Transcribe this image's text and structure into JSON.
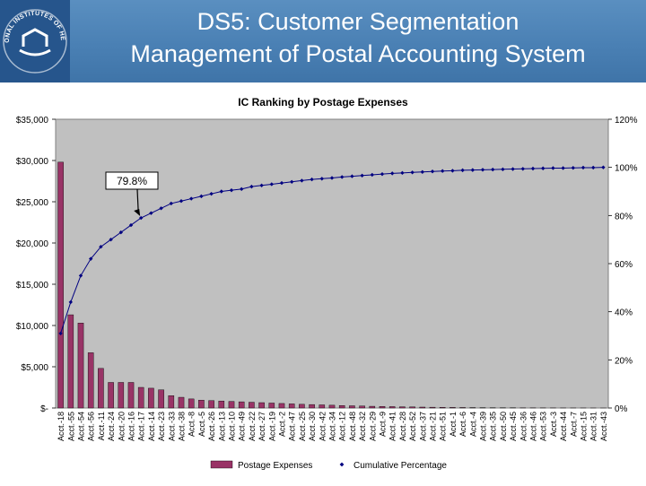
{
  "slide": {
    "title_line1": "DS5: Customer Segmentation",
    "title_line2": "Management of Postal Accounting System",
    "logo_text": "NATIONAL INSTITUTES OF HEALTH"
  },
  "chart_data": {
    "type": "bar",
    "title": "IC Ranking by Postage Expenses",
    "categories": [
      "Acct.-18",
      "Acct.-55",
      "Acct.-54",
      "Acct.-56",
      "Acct.-11",
      "Acct.-24",
      "Acct.-20",
      "Acct.-16",
      "Acct.-17",
      "Acct.-14",
      "Acct.-23",
      "Acct.-33",
      "Acct.-38",
      "Acct.-8",
      "Acct.-5",
      "Acct.-26",
      "Acct.-13",
      "Acct.-10",
      "Acct.-49",
      "Acct.-22",
      "Acct.-27",
      "Acct.-19",
      "Acct.-2",
      "Acct.-47",
      "Acct.-25",
      "Acct.-30",
      "Acct.-42",
      "Acct.-34",
      "Acct.-12",
      "Acct.-48",
      "Acct.-32",
      "Acct.-29",
      "Acct.-9",
      "Acct.-41",
      "Acct.-28",
      "Acct.-52",
      "Acct.-37",
      "Acct.-21",
      "Acct.-51",
      "Acct.-1",
      "Acct.-6",
      "Acct.-4",
      "Acct.-39",
      "Acct.-35",
      "Acct.-50",
      "Acct.-45",
      "Acct.-36",
      "Acct.-46",
      "Acct.-53",
      "Acct.-3",
      "Acct.-44",
      "Acct.-7",
      "Acct.-15",
      "Acct.-31",
      "Acct.-43"
    ],
    "series": [
      {
        "name": "Postage Expenses",
        "kind": "bar",
        "axis": "left",
        "color": "#993366",
        "values": [
          29800,
          11300,
          10300,
          6700,
          4800,
          3100,
          3100,
          3100,
          2500,
          2400,
          2200,
          1500,
          1300,
          1100,
          950,
          900,
          850,
          800,
          750,
          700,
          650,
          600,
          550,
          500,
          450,
          420,
          380,
          340,
          300,
          270,
          240,
          210,
          190,
          170,
          150,
          130,
          110,
          95,
          80,
          70,
          60,
          50,
          40,
          35,
          30,
          25,
          20,
          18,
          15,
          12,
          10,
          8,
          6,
          4,
          2
        ]
      },
      {
        "name": "Cumulative Percentage",
        "kind": "line",
        "axis": "right",
        "color": "#000080",
        "values": [
          0.31,
          0.44,
          0.55,
          0.62,
          0.67,
          0.7,
          0.73,
          0.76,
          0.79,
          0.81,
          0.83,
          0.85,
          0.86,
          0.87,
          0.88,
          0.89,
          0.9,
          0.905,
          0.91,
          0.92,
          0.925,
          0.93,
          0.935,
          0.94,
          0.945,
          0.95,
          0.953,
          0.956,
          0.96,
          0.963,
          0.966,
          0.969,
          0.972,
          0.975,
          0.977,
          0.979,
          0.981,
          0.983,
          0.985,
          0.986,
          0.988,
          0.989,
          0.99,
          0.991,
          0.992,
          0.993,
          0.994,
          0.995,
          0.996,
          0.997,
          0.997,
          0.998,
          0.999,
          0.999,
          1.0
        ]
      }
    ],
    "y_left": {
      "min": 0,
      "max": 35000,
      "ticks": [
        0,
        5000,
        10000,
        15000,
        20000,
        25000,
        30000,
        35000
      ],
      "tick_labels": [
        "$-",
        "$5,000",
        "$10,000",
        "$15,000",
        "$20,000",
        "$25,000",
        "$30,000",
        "$35,000"
      ]
    },
    "y_right": {
      "min": 0,
      "max": 1.2,
      "ticks": [
        0,
        0.2,
        0.4,
        0.6,
        0.8,
        1.0,
        1.2
      ],
      "tick_labels": [
        "0%",
        "20%",
        "40%",
        "60%",
        "80%",
        "100%",
        "120%"
      ]
    },
    "annotation": {
      "text": "79.8%",
      "target_index": 8
    },
    "legend": {
      "position": "bottom",
      "items": [
        "Postage Expenses",
        "Cumulative Percentage"
      ]
    },
    "grid": false,
    "plot_background": "#c0c0c0"
  }
}
